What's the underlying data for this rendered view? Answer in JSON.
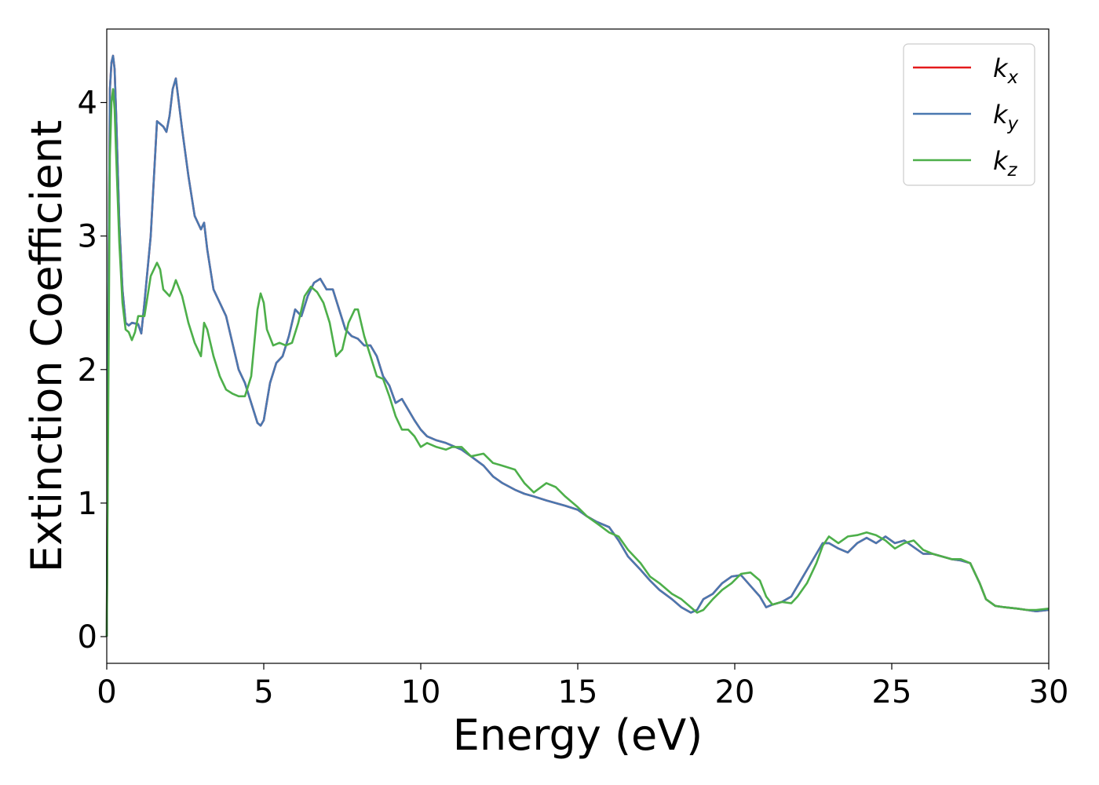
{
  "chart_data": {
    "type": "line",
    "xlabel": "Energy (eV)",
    "ylabel": "Extinction Coefficient",
    "xlim": [
      0,
      30
    ],
    "ylim": [
      -0.2,
      4.55
    ],
    "x_ticks": [
      "0",
      "5",
      "10",
      "15",
      "20",
      "25",
      "30"
    ],
    "y_ticks": [
      "0",
      "1",
      "2",
      "3",
      "4"
    ],
    "grid": false,
    "legend_position": "top-right",
    "series": [
      {
        "name": "k",
        "subscript": "x",
        "color": "#e41a1c",
        "x": [
          0,
          0.05,
          0.1,
          0.15,
          0.2,
          0.25,
          0.3,
          0.4,
          0.5,
          0.6,
          0.7,
          0.8,
          1.0,
          1.1,
          1.2,
          1.4,
          1.6,
          1.8,
          1.9,
          2.0,
          2.1,
          2.2,
          2.4,
          2.6,
          2.8,
          3.0,
          3.1,
          3.2,
          3.4,
          3.6,
          3.8,
          4.0,
          4.2,
          4.4,
          4.6,
          4.8,
          4.9,
          5.0,
          5.2,
          5.4,
          5.6,
          5.8,
          6.0,
          6.2,
          6.4,
          6.6,
          6.8,
          7.0,
          7.2,
          7.4,
          7.6,
          7.8,
          8.0,
          8.2,
          8.4,
          8.6,
          8.8,
          9.0,
          9.2,
          9.4,
          9.6,
          9.8,
          10.0,
          10.2,
          10.5,
          10.8,
          11.0,
          11.3,
          11.6,
          12.0,
          12.3,
          12.6,
          13.0,
          13.3,
          13.6,
          14.0,
          14.3,
          14.6,
          15.0,
          15.3,
          15.6,
          16.0,
          16.3,
          16.6,
          17.0,
          17.3,
          17.6,
          18.0,
          18.3,
          18.6,
          18.8,
          19.0,
          19.3,
          19.6,
          19.9,
          20.2,
          20.5,
          20.8,
          21.0,
          21.2,
          21.5,
          21.8,
          22.0,
          22.3,
          22.6,
          22.8,
          23.0,
          23.3,
          23.6,
          23.9,
          24.2,
          24.5,
          24.8,
          25.1,
          25.4,
          25.7,
          26.0,
          26.3,
          26.6,
          26.9,
          27.2,
          27.5,
          27.8,
          28.0,
          28.3,
          28.6,
          29.0,
          29.3,
          29.6,
          30.0
        ],
        "y": [
          0.0,
          2.4,
          4.1,
          4.3,
          4.35,
          4.25,
          3.9,
          3.1,
          2.6,
          2.35,
          2.33,
          2.35,
          2.34,
          2.27,
          2.5,
          3.0,
          3.86,
          3.82,
          3.78,
          3.9,
          4.1,
          4.18,
          3.8,
          3.45,
          3.15,
          3.05,
          3.1,
          2.9,
          2.6,
          2.5,
          2.4,
          2.2,
          2.0,
          1.9,
          1.75,
          1.6,
          1.58,
          1.62,
          1.9,
          2.05,
          2.1,
          2.25,
          2.45,
          2.4,
          2.55,
          2.65,
          2.68,
          2.6,
          2.6,
          2.45,
          2.3,
          2.25,
          2.23,
          2.18,
          2.18,
          2.1,
          1.95,
          1.88,
          1.75,
          1.78,
          1.7,
          1.62,
          1.55,
          1.5,
          1.47,
          1.45,
          1.43,
          1.4,
          1.35,
          1.28,
          1.2,
          1.15,
          1.1,
          1.07,
          1.05,
          1.02,
          1.0,
          0.98,
          0.95,
          0.9,
          0.86,
          0.82,
          0.72,
          0.6,
          0.5,
          0.42,
          0.35,
          0.28,
          0.22,
          0.18,
          0.2,
          0.28,
          0.32,
          0.4,
          0.45,
          0.46,
          0.38,
          0.3,
          0.22,
          0.24,
          0.26,
          0.3,
          0.38,
          0.5,
          0.62,
          0.7,
          0.7,
          0.66,
          0.63,
          0.7,
          0.74,
          0.7,
          0.75,
          0.7,
          0.72,
          0.67,
          0.62,
          0.62,
          0.6,
          0.58,
          0.57,
          0.55,
          0.4,
          0.28,
          0.23,
          0.22,
          0.21,
          0.2,
          0.19,
          0.2
        ]
      },
      {
        "name": "k",
        "subscript": "y",
        "color": "#4a78b0",
        "x": [
          0,
          0.05,
          0.1,
          0.15,
          0.2,
          0.25,
          0.3,
          0.4,
          0.5,
          0.6,
          0.7,
          0.8,
          1.0,
          1.1,
          1.2,
          1.4,
          1.6,
          1.8,
          1.9,
          2.0,
          2.1,
          2.2,
          2.4,
          2.6,
          2.8,
          3.0,
          3.1,
          3.2,
          3.4,
          3.6,
          3.8,
          4.0,
          4.2,
          4.4,
          4.6,
          4.8,
          4.9,
          5.0,
          5.2,
          5.4,
          5.6,
          5.8,
          6.0,
          6.2,
          6.4,
          6.6,
          6.8,
          7.0,
          7.2,
          7.4,
          7.6,
          7.8,
          8.0,
          8.2,
          8.4,
          8.6,
          8.8,
          9.0,
          9.2,
          9.4,
          9.6,
          9.8,
          10.0,
          10.2,
          10.5,
          10.8,
          11.0,
          11.3,
          11.6,
          12.0,
          12.3,
          12.6,
          13.0,
          13.3,
          13.6,
          14.0,
          14.3,
          14.6,
          15.0,
          15.3,
          15.6,
          16.0,
          16.3,
          16.6,
          17.0,
          17.3,
          17.6,
          18.0,
          18.3,
          18.6,
          18.8,
          19.0,
          19.3,
          19.6,
          19.9,
          20.2,
          20.5,
          20.8,
          21.0,
          21.2,
          21.5,
          21.8,
          22.0,
          22.3,
          22.6,
          22.8,
          23.0,
          23.3,
          23.6,
          23.9,
          24.2,
          24.5,
          24.8,
          25.1,
          25.4,
          25.7,
          26.0,
          26.3,
          26.6,
          26.9,
          27.2,
          27.5,
          27.8,
          28.0,
          28.3,
          28.6,
          29.0,
          29.3,
          29.6,
          30.0
        ],
        "y": [
          0.0,
          2.4,
          4.1,
          4.3,
          4.35,
          4.25,
          3.9,
          3.1,
          2.6,
          2.35,
          2.33,
          2.35,
          2.34,
          2.27,
          2.5,
          3.0,
          3.86,
          3.82,
          3.78,
          3.9,
          4.1,
          4.18,
          3.8,
          3.45,
          3.15,
          3.05,
          3.1,
          2.9,
          2.6,
          2.5,
          2.4,
          2.2,
          2.0,
          1.9,
          1.75,
          1.6,
          1.58,
          1.62,
          1.9,
          2.05,
          2.1,
          2.25,
          2.45,
          2.4,
          2.55,
          2.65,
          2.68,
          2.6,
          2.6,
          2.45,
          2.3,
          2.25,
          2.23,
          2.18,
          2.18,
          2.1,
          1.95,
          1.88,
          1.75,
          1.78,
          1.7,
          1.62,
          1.55,
          1.5,
          1.47,
          1.45,
          1.43,
          1.4,
          1.35,
          1.28,
          1.2,
          1.15,
          1.1,
          1.07,
          1.05,
          1.02,
          1.0,
          0.98,
          0.95,
          0.9,
          0.86,
          0.82,
          0.72,
          0.6,
          0.5,
          0.42,
          0.35,
          0.28,
          0.22,
          0.18,
          0.2,
          0.28,
          0.32,
          0.4,
          0.45,
          0.46,
          0.38,
          0.3,
          0.22,
          0.24,
          0.26,
          0.3,
          0.38,
          0.5,
          0.62,
          0.7,
          0.7,
          0.66,
          0.63,
          0.7,
          0.74,
          0.7,
          0.75,
          0.7,
          0.72,
          0.67,
          0.62,
          0.62,
          0.6,
          0.58,
          0.57,
          0.55,
          0.4,
          0.28,
          0.23,
          0.22,
          0.21,
          0.2,
          0.19,
          0.2
        ]
      },
      {
        "name": "k",
        "subscript": "z",
        "color": "#4daf4a",
        "x": [
          0,
          0.05,
          0.1,
          0.15,
          0.2,
          0.25,
          0.3,
          0.4,
          0.5,
          0.6,
          0.7,
          0.8,
          0.9,
          1.0,
          1.2,
          1.4,
          1.6,
          1.7,
          1.8,
          2.0,
          2.1,
          2.2,
          2.4,
          2.6,
          2.8,
          3.0,
          3.1,
          3.2,
          3.4,
          3.6,
          3.8,
          4.0,
          4.2,
          4.4,
          4.6,
          4.8,
          4.9,
          5.0,
          5.1,
          5.3,
          5.5,
          5.7,
          5.9,
          6.1,
          6.3,
          6.5,
          6.7,
          6.9,
          7.1,
          7.3,
          7.5,
          7.7,
          7.9,
          8.0,
          8.2,
          8.4,
          8.6,
          8.8,
          9.0,
          9.2,
          9.4,
          9.6,
          9.8,
          10.0,
          10.2,
          10.5,
          10.8,
          11.0,
          11.3,
          11.6,
          12.0,
          12.3,
          12.6,
          13.0,
          13.3,
          13.6,
          14.0,
          14.3,
          14.6,
          15.0,
          15.3,
          15.6,
          16.0,
          16.3,
          16.6,
          17.0,
          17.3,
          17.6,
          18.0,
          18.3,
          18.6,
          18.8,
          19.0,
          19.3,
          19.6,
          19.9,
          20.2,
          20.5,
          20.8,
          21.0,
          21.2,
          21.5,
          21.8,
          22.0,
          22.3,
          22.6,
          22.8,
          23.0,
          23.3,
          23.6,
          23.9,
          24.2,
          24.5,
          24.8,
          25.1,
          25.4,
          25.7,
          26.0,
          26.3,
          26.6,
          26.9,
          27.2,
          27.5,
          27.8,
          28.0,
          28.3,
          28.6,
          29.0,
          29.3,
          29.6,
          30.0
        ],
        "y": [
          0.0,
          1.8,
          3.6,
          4.0,
          4.1,
          3.95,
          3.6,
          2.95,
          2.5,
          2.3,
          2.28,
          2.22,
          2.28,
          2.4,
          2.4,
          2.7,
          2.8,
          2.75,
          2.6,
          2.55,
          2.6,
          2.67,
          2.55,
          2.35,
          2.2,
          2.1,
          2.35,
          2.3,
          2.1,
          1.95,
          1.85,
          1.82,
          1.8,
          1.8,
          1.95,
          2.45,
          2.57,
          2.5,
          2.3,
          2.18,
          2.2,
          2.18,
          2.2,
          2.35,
          2.55,
          2.62,
          2.58,
          2.5,
          2.35,
          2.1,
          2.15,
          2.35,
          2.45,
          2.45,
          2.25,
          2.1,
          1.95,
          1.93,
          1.8,
          1.65,
          1.55,
          1.55,
          1.5,
          1.42,
          1.45,
          1.42,
          1.4,
          1.42,
          1.42,
          1.35,
          1.37,
          1.3,
          1.28,
          1.25,
          1.15,
          1.08,
          1.15,
          1.12,
          1.05,
          0.97,
          0.9,
          0.85,
          0.78,
          0.75,
          0.65,
          0.55,
          0.45,
          0.4,
          0.32,
          0.28,
          0.22,
          0.18,
          0.2,
          0.28,
          0.35,
          0.4,
          0.47,
          0.48,
          0.42,
          0.3,
          0.24,
          0.26,
          0.25,
          0.3,
          0.4,
          0.55,
          0.68,
          0.75,
          0.7,
          0.75,
          0.76,
          0.78,
          0.76,
          0.72,
          0.66,
          0.7,
          0.72,
          0.65,
          0.62,
          0.6,
          0.58,
          0.58,
          0.55,
          0.4,
          0.28,
          0.23,
          0.22,
          0.21,
          0.2,
          0.2,
          0.21
        ]
      }
    ]
  }
}
